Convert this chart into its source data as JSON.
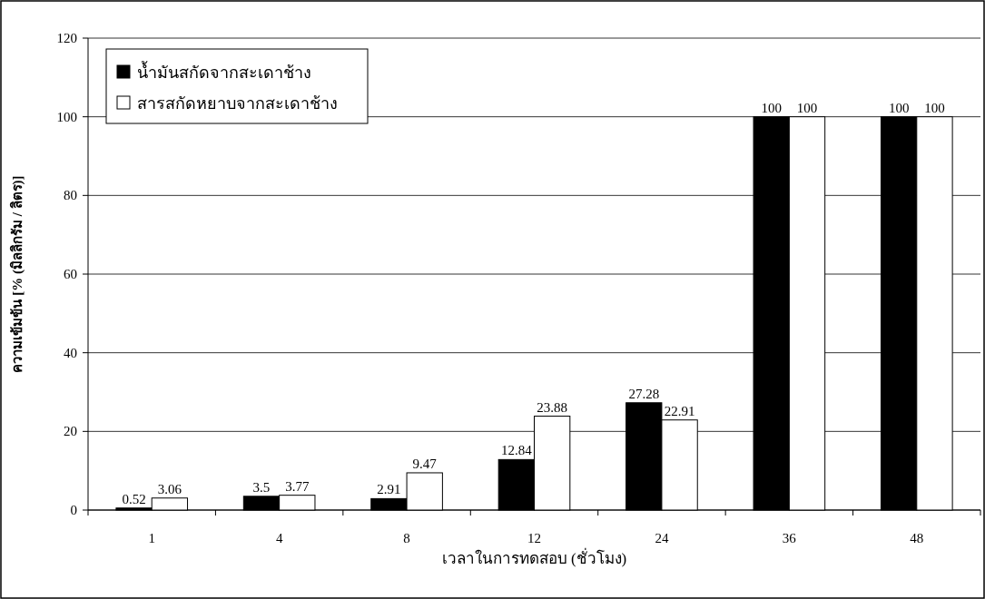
{
  "chart_data": {
    "type": "bar",
    "xlabel": "เวลาในการทดสอบ (ชั่วโมง)",
    "ylabel": "ความเข้มข้น [% (มิลลิกรัม / ลิตร)]",
    "categories": [
      "1",
      "4",
      "8",
      "12",
      "24",
      "36",
      "48"
    ],
    "series": [
      {
        "name": "น้ำมันสกัดจากสะเดาช้าง",
        "color": "#000000",
        "values": [
          0.52,
          3.5,
          2.91,
          12.84,
          27.28,
          100,
          100
        ]
      },
      {
        "name": "สารสกัดหยาบจากสะเดาช้าง",
        "color": "#ffffff",
        "values": [
          3.06,
          3.77,
          9.47,
          23.88,
          22.91,
          100,
          100
        ]
      }
    ],
    "ylim": [
      0,
      120
    ],
    "yticks": [
      0,
      20,
      40,
      60,
      80,
      100,
      120
    ],
    "grid": "y",
    "legend": "top left",
    "data_labels": true
  }
}
